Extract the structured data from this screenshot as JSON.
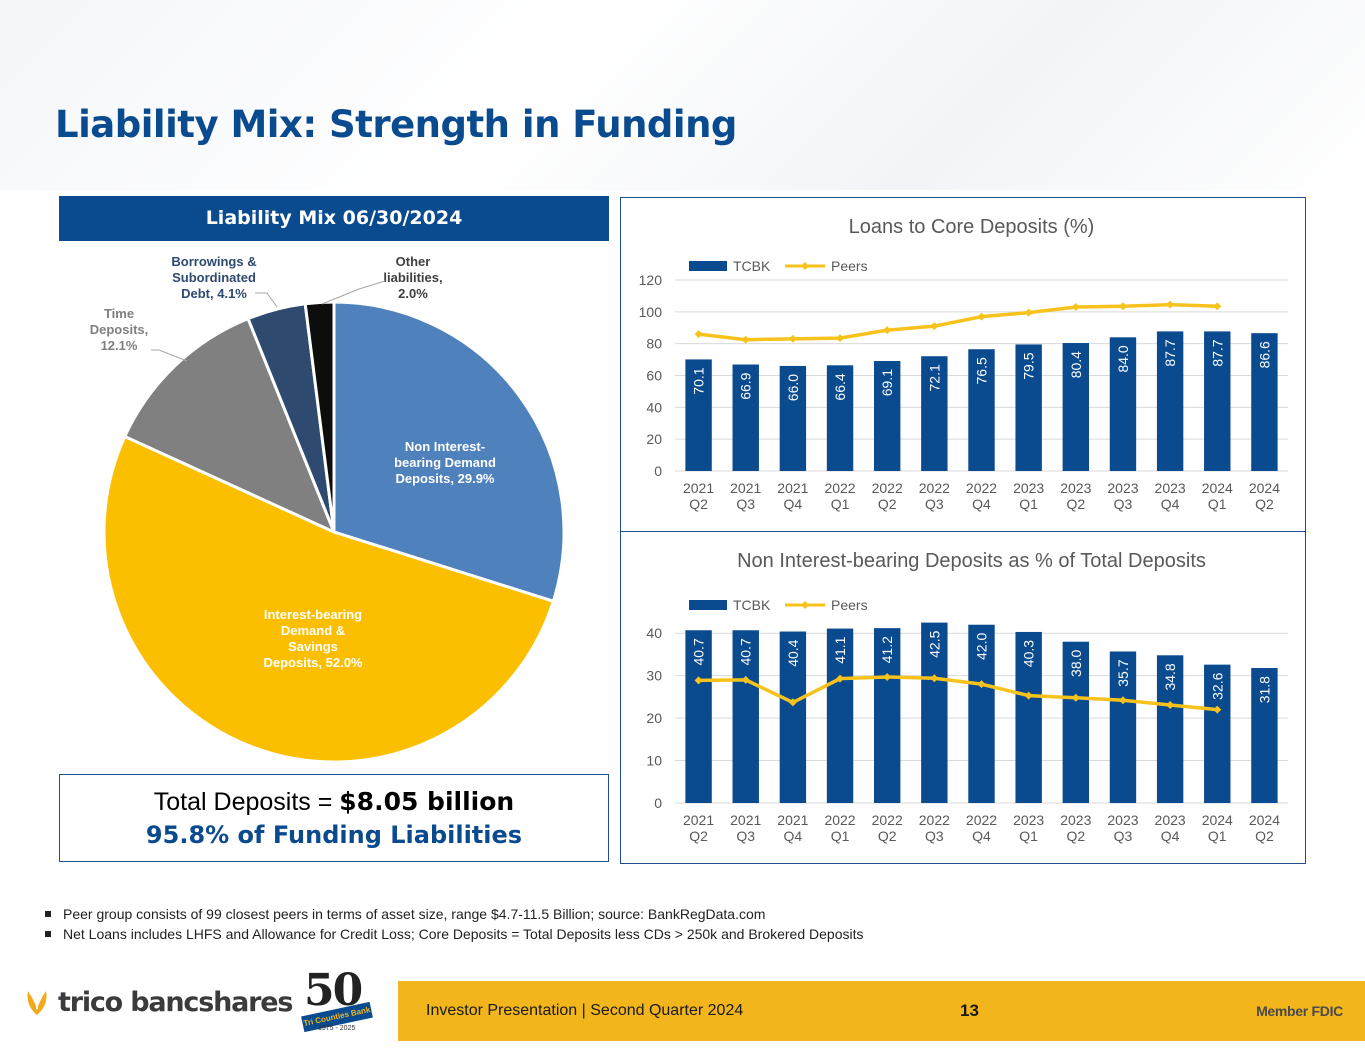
{
  "title": "Liability Mix: Strength in Funding",
  "pie_header": "Liability Mix 06/30/2024",
  "totals": {
    "line1_prefix": "Total Deposits = ",
    "line1_value": "$8.05 billion",
    "line2": "95.8% of Funding Liabilities"
  },
  "chart_data": [
    {
      "type": "pie",
      "title": "Liability Mix 06/30/2024",
      "slices": [
        {
          "label_lines": [
            "Non Interest-",
            "bearing Demand",
            "Deposits, 29.9%"
          ],
          "value": 29.9,
          "color": "#4f81bd"
        },
        {
          "label_lines": [
            "Interest-bearing",
            "Demand &",
            "Savings",
            "Deposits, 52.0%"
          ],
          "value": 52.0,
          "color": "#fbbf00"
        },
        {
          "label_lines": [
            "Time",
            "Deposits,",
            "12.1%"
          ],
          "value": 12.1,
          "color": "#808080"
        },
        {
          "label_lines": [
            "Borrowings &",
            "Subordinated",
            "Debt, 4.1%"
          ],
          "value": 4.1,
          "color": "#2e4a6f"
        },
        {
          "label_lines": [
            "Other",
            "liabilities,",
            "2.0%"
          ],
          "value": 2.0,
          "color": "#0d0d0d"
        }
      ]
    },
    {
      "type": "bar",
      "title": "Loans to Core Deposits (%)",
      "categories": [
        "2021 Q2",
        "2021 Q3",
        "2021 Q4",
        "2022 Q1",
        "2022 Q2",
        "2022 Q3",
        "2022 Q4",
        "2023 Q1",
        "2023 Q2",
        "2023 Q3",
        "2023 Q4",
        "2024 Q1",
        "2024 Q2"
      ],
      "series": [
        {
          "name": "TCBK",
          "kind": "bar",
          "color": "#0a4a8f",
          "values": [
            70.1,
            66.9,
            66.0,
            66.4,
            69.1,
            72.1,
            76.5,
            79.5,
            80.4,
            84.0,
            87.7,
            87.7,
            86.6
          ]
        },
        {
          "name": "Peers",
          "kind": "line",
          "color": "#f8c21c",
          "values": [
            86,
            82.5,
            83,
            83.5,
            88.5,
            91,
            97,
            99.5,
            103,
            103.5,
            104.5,
            103.5,
            null
          ]
        }
      ],
      "ylim": [
        0,
        120
      ],
      "yticks": [
        0,
        20,
        40,
        60,
        80,
        100,
        120
      ],
      "grid": true,
      "legend": "top-left"
    },
    {
      "type": "bar",
      "title": "Non Interest-bearing Deposits as % of Total Deposits",
      "categories": [
        "2021 Q2",
        "2021 Q3",
        "2021 Q4",
        "2022 Q1",
        "2022 Q2",
        "2022 Q3",
        "2022 Q4",
        "2023 Q1",
        "2023 Q2",
        "2023 Q3",
        "2023 Q4",
        "2024 Q1",
        "2024 Q2"
      ],
      "series": [
        {
          "name": "TCBK",
          "kind": "bar",
          "color": "#0a4a8f",
          "values": [
            40.7,
            40.7,
            40.4,
            41.1,
            41.2,
            42.5,
            42.0,
            40.3,
            38.0,
            35.7,
            34.8,
            32.6,
            31.8
          ]
        },
        {
          "name": "Peers",
          "kind": "line",
          "color": "#f8c21c",
          "values": [
            28.9,
            29.0,
            23.7,
            29.3,
            29.7,
            29.4,
            28.0,
            25.3,
            24.8,
            24.2,
            23.1,
            22.0,
            null
          ]
        }
      ],
      "ylim": [
        0,
        45
      ],
      "yticks": [
        0,
        10,
        20,
        30,
        40
      ],
      "grid": true,
      "legend": "top-left"
    }
  ],
  "footnotes": [
    "Peer group consists of 99 closest peers in terms of asset size, range $4.7-11.5 Billion; source: BankRegData.com",
    "Net Loans includes LHFS and Allowance for Credit Loss; Core Deposits = Total Deposits less CDs > 250k and Brokered Deposits"
  ],
  "footer": {
    "presentation": "Investor Presentation  |  Second Quarter 2024",
    "page": "13",
    "fdic": "Member FDIC"
  },
  "logo": {
    "text": "trico bancshares",
    "anniversary_number": "50",
    "anniversary_ribbon": "Tri Counties Bank",
    "anniversary_years": "1975 - 2025"
  }
}
